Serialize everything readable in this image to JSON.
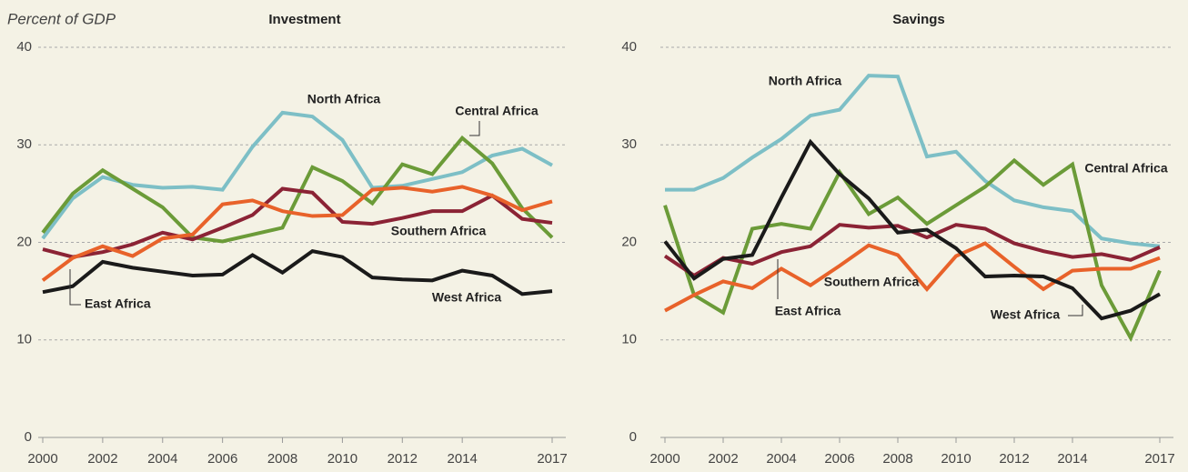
{
  "chart_data": [
    {
      "type": "line",
      "title": "Investment",
      "ylabel": "Percent of GDP",
      "x": [
        2000,
        2001,
        2002,
        2003,
        2004,
        2005,
        2006,
        2007,
        2008,
        2009,
        2010,
        2011,
        2012,
        2013,
        2014,
        2015,
        2016,
        2017
      ],
      "xlim": [
        2000,
        2017
      ],
      "xticks": [
        2000,
        2002,
        2004,
        2006,
        2008,
        2010,
        2012,
        2014,
        2017
      ],
      "ylim": [
        0,
        40
      ],
      "yticks": [
        0,
        10,
        20,
        30,
        40
      ],
      "grid": true,
      "series": [
        {
          "name": "North Africa",
          "color": "#7dbfc6",
          "values": [
            20.4,
            24.5,
            26.7,
            25.9,
            25.6,
            25.7,
            25.4,
            29.8,
            33.3,
            32.9,
            30.5,
            25.6,
            25.8,
            26.5,
            27.2,
            28.9,
            29.6,
            27.9
          ]
        },
        {
          "name": "Central Africa",
          "color": "#6b9b38",
          "values": [
            21.0,
            25.0,
            27.4,
            25.5,
            23.6,
            20.5,
            20.1,
            20.8,
            21.5,
            27.7,
            26.3,
            24.0,
            28.0,
            27.0,
            30.7,
            28.1,
            23.5,
            20.5
          ]
        },
        {
          "name": "Southern Africa",
          "color": "#8b2335",
          "values": [
            19.3,
            18.5,
            19.0,
            19.8,
            21.0,
            20.3,
            21.5,
            22.8,
            25.5,
            25.1,
            22.1,
            21.9,
            22.5,
            23.2,
            23.2,
            24.8,
            22.4,
            22.0
          ]
        },
        {
          "name": "East Africa",
          "color": "#e8622a",
          "values": [
            16.1,
            18.4,
            19.6,
            18.6,
            20.4,
            20.8,
            23.9,
            24.3,
            23.2,
            22.7,
            22.8,
            25.4,
            25.6,
            25.2,
            25.7,
            24.8,
            23.3,
            24.2
          ]
        },
        {
          "name": "West Africa",
          "color": "#1a1a1a",
          "values": [
            14.9,
            15.5,
            18.0,
            17.4,
            17.0,
            16.6,
            16.7,
            18.7,
            16.9,
            19.1,
            18.5,
            16.4,
            16.2,
            16.1,
            17.1,
            16.6,
            14.7,
            15.0
          ]
        }
      ]
    },
    {
      "type": "line",
      "title": "Savings",
      "x": [
        2000,
        2001,
        2002,
        2003,
        2004,
        2005,
        2006,
        2007,
        2008,
        2009,
        2010,
        2011,
        2012,
        2013,
        2014,
        2015,
        2016,
        2017
      ],
      "xlim": [
        2000,
        2017
      ],
      "xticks": [
        2000,
        2002,
        2004,
        2006,
        2008,
        2010,
        2012,
        2014,
        2017
      ],
      "ylim": [
        0,
        40
      ],
      "yticks": [
        0,
        10,
        20,
        30,
        40
      ],
      "grid": true,
      "series": [
        {
          "name": "North Africa",
          "color": "#7dbfc6",
          "values": [
            25.4,
            25.4,
            26.6,
            28.7,
            30.6,
            33.0,
            33.6,
            37.1,
            37.0,
            28.8,
            29.3,
            26.3,
            24.3,
            23.6,
            23.2,
            20.4,
            19.9,
            19.6
          ]
        },
        {
          "name": "Central Africa",
          "color": "#6b9b38",
          "values": [
            23.8,
            14.6,
            12.8,
            21.4,
            21.9,
            21.4,
            27.2,
            22.9,
            24.6,
            21.9,
            23.8,
            25.7,
            28.4,
            25.9,
            28.0,
            15.6,
            10.2,
            17.1
          ]
        },
        {
          "name": "Southern Africa",
          "color": "#8b2335",
          "values": [
            18.6,
            16.6,
            18.4,
            17.8,
            19.0,
            19.6,
            21.8,
            21.5,
            21.7,
            20.5,
            21.8,
            21.4,
            19.9,
            19.1,
            18.5,
            18.8,
            18.2,
            19.5
          ]
        },
        {
          "name": "East Africa",
          "color": "#e8622a",
          "values": [
            13.0,
            14.6,
            16.0,
            15.3,
            17.3,
            15.6,
            17.6,
            19.7,
            18.7,
            15.2,
            18.6,
            19.9,
            17.5,
            15.2,
            17.1,
            17.3,
            17.3,
            18.4
          ]
        },
        {
          "name": "West Africa",
          "color": "#1a1a1a",
          "values": [
            20.1,
            16.3,
            18.3,
            18.7,
            24.6,
            30.3,
            27.0,
            24.5,
            21.0,
            21.3,
            19.4,
            16.5,
            16.6,
            16.5,
            15.3,
            12.2,
            13.0,
            14.7
          ]
        }
      ]
    }
  ]
}
